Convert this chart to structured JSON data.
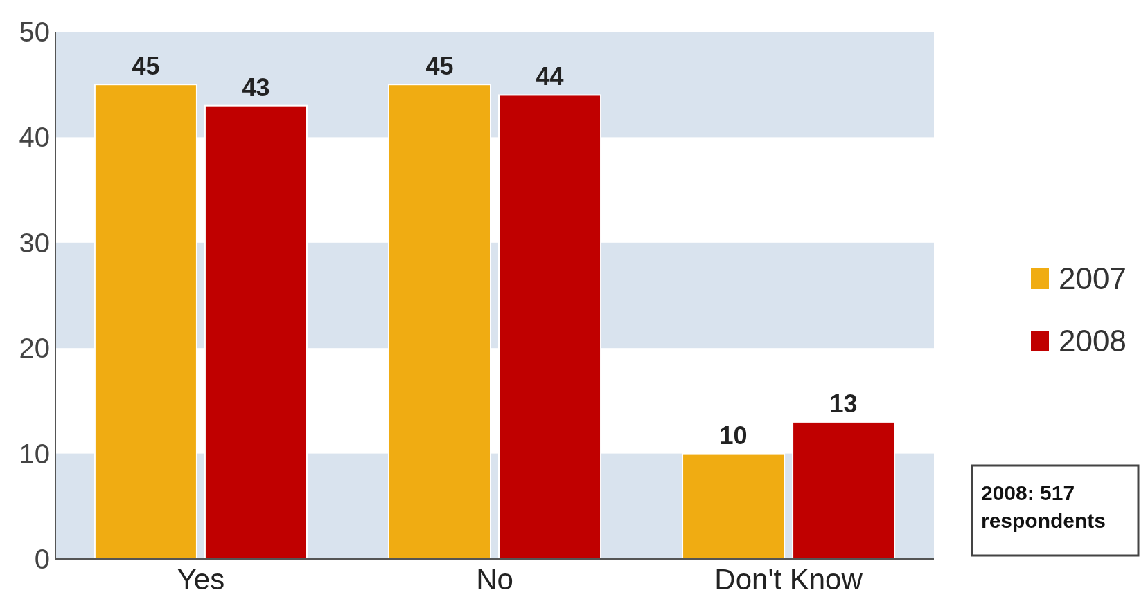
{
  "chart_data": {
    "type": "bar",
    "categories": [
      "Yes",
      "No",
      "Don't Know"
    ],
    "series": [
      {
        "name": "2007",
        "color": "#f0ac12",
        "values": [
          45,
          45,
          10
        ]
      },
      {
        "name": "2008",
        "color": "#c00000",
        "values": [
          43,
          44,
          13
        ]
      }
    ],
    "ylim": [
      0,
      50
    ],
    "yticks": [
      0,
      10,
      20,
      30,
      40,
      50
    ],
    "data_labels": true,
    "legend": "right",
    "bands": [
      {
        "axis": "y",
        "from": 0,
        "to": 10,
        "color": "#d9e3ee"
      },
      {
        "axis": "y",
        "from": 20,
        "to": 30,
        "color": "#d9e3ee"
      },
      {
        "axis": "y",
        "from": 40,
        "to": 50,
        "color": "#d9e3ee"
      }
    ],
    "annotations": [
      "2008: 517 respondents"
    ]
  }
}
